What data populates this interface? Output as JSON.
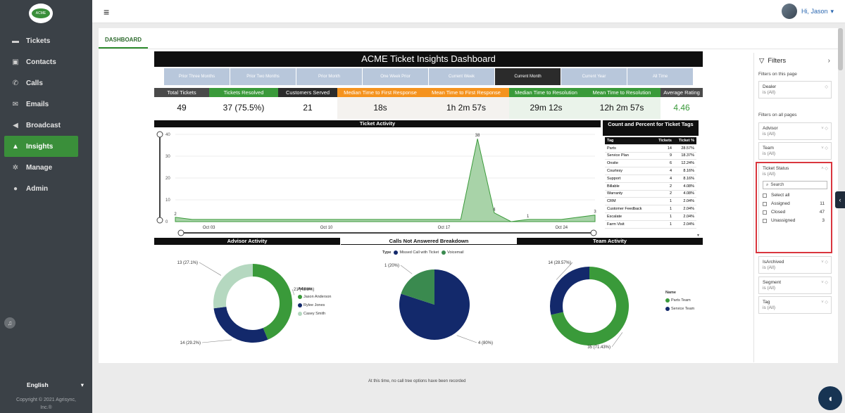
{
  "app": {
    "logo_text": "ACME",
    "nav": [
      {
        "label": "Tickets",
        "icon": "ticket-icon"
      },
      {
        "label": "Contacts",
        "icon": "contacts-icon"
      },
      {
        "label": "Calls",
        "icon": "phone-icon"
      },
      {
        "label": "Emails",
        "icon": "email-icon"
      },
      {
        "label": "Broadcast",
        "icon": "megaphone-icon"
      },
      {
        "label": "Insights",
        "icon": "chart-icon",
        "active": true
      },
      {
        "label": "Manage",
        "icon": "gear-icon"
      },
      {
        "label": "Admin",
        "icon": "user-icon"
      }
    ],
    "language": "English",
    "copyright_line1": "Copyright © 2021 Agrisync,",
    "copyright_line2": "Inc.®",
    "greeting": "Hi, Jason"
  },
  "tab": "DASHBOARD",
  "report": {
    "title": "ACME Ticket Insights Dashboard",
    "periods": [
      "Prior Three Months",
      "Prior Two Months",
      "Prior Month",
      "One Week Prior",
      "Current Week",
      "Current Month",
      "Current Year",
      "All Time"
    ],
    "active_period": "Current Month",
    "kpis": [
      {
        "label": "Total Tickets",
        "value": "49",
        "label_bg": "#4a4a4a",
        "value_bg": "#ffffff",
        "value_color": "#111111"
      },
      {
        "label": "Tickets Resolved",
        "value": "37 (75.5%)",
        "label_bg": "#3a9a3a",
        "value_bg": "#ffffff",
        "value_color": "#111111"
      },
      {
        "label": "Customers Served",
        "value": "21",
        "label_bg": "#2c2c2c",
        "value_bg": "#ffffff",
        "value_color": "#111111"
      },
      {
        "label": "Median Time to First Response",
        "value": "18s",
        "label_bg": "#f5931e",
        "value_bg": "#f4f2ef",
        "value_color": "#111111"
      },
      {
        "label": "Mean Time to First Response",
        "value": "1h 2m 57s",
        "label_bg": "#f5931e",
        "value_bg": "#f4f2ef",
        "value_color": "#111111"
      },
      {
        "label": "Median Time to Resolution",
        "value": "29m 12s",
        "label_bg": "#3a9a3a",
        "value_bg": "#eaf3ea",
        "value_color": "#111111"
      },
      {
        "label": "Mean Time to Resolution",
        "value": "12h 2m 57s",
        "label_bg": "#3a9a3a",
        "value_bg": "#eaf3ea",
        "value_color": "#111111"
      },
      {
        "label": "Average Rating",
        "value": "4.46",
        "label_bg": "#4a4a4a",
        "value_bg": "#ffffff",
        "value_color": "#3a9a3a"
      }
    ],
    "ticket_activity_title": "Ticket Activity",
    "tags_title": "Count and Percent for Ticket Tags",
    "tags_headers": [
      "Tag",
      "Tickets",
      "Ticket %"
    ],
    "tags": [
      [
        "Parts",
        "14",
        "28.57%"
      ],
      [
        "Service Plan",
        "9",
        "18.37%"
      ],
      [
        "Onsite",
        "6",
        "12.24%"
      ],
      [
        "Courtesy",
        "4",
        "8.16%"
      ],
      [
        "Support",
        "4",
        "8.16%"
      ],
      [
        "Billable",
        "2",
        "4.08%"
      ],
      [
        "Warranty",
        "2",
        "4.08%"
      ],
      [
        "CRM",
        "1",
        "2.04%"
      ],
      [
        "Customer Feedback",
        "1",
        "2.04%"
      ],
      [
        "Escalate",
        "1",
        "2.04%"
      ],
      [
        "Farm Visit",
        "1",
        "2.04%"
      ]
    ],
    "advisor_title": "Advisor Activity",
    "advisor_legend_title": "Advisor",
    "calls_title": "Calls Not Answered Breakdown",
    "calls_legend_title": "Type",
    "calls_note": "At this time, no call tree options have been recorded",
    "team_title": "Team Activity",
    "team_legend_title": "Name"
  },
  "chart_data": [
    {
      "type": "area",
      "title": "Ticket Activity",
      "x": [
        "Oct 01",
        "Oct 02",
        "Oct 03",
        "Oct 04",
        "Oct 05",
        "Oct 06",
        "Oct 07",
        "Oct 08",
        "Oct 09",
        "Oct 10",
        "Oct 11",
        "Oct 12",
        "Oct 13",
        "Oct 14",
        "Oct 15",
        "Oct 16",
        "Oct 17",
        "Oct 18",
        "Oct 19",
        "Oct 20",
        "Oct 21",
        "Oct 22",
        "Oct 23",
        "Oct 24",
        "Oct 25",
        "Oct 26"
      ],
      "values": [
        2,
        1,
        1,
        1,
        1,
        1,
        1,
        1,
        1,
        1,
        1,
        1,
        1,
        1,
        1,
        1,
        1,
        1,
        38,
        4,
        0,
        1,
        1,
        1,
        2,
        3
      ],
      "point_labels": {
        "0": "2",
        "18": "38",
        "19": "4",
        "21": "1",
        "25": "3"
      },
      "x_ticks": [
        "Oct 03",
        "Oct 10",
        "Oct 17",
        "Oct 24"
      ],
      "y_ticks": [
        0,
        10,
        20,
        30,
        40
      ],
      "ylim": [
        0,
        40
      ],
      "color": "#3a9a3a"
    },
    {
      "type": "pie",
      "title": "Advisor Activity",
      "donut": true,
      "slices": [
        {
          "name": "Jason Anderson",
          "value": 21,
          "label": "21 (43.8%)",
          "color": "#3a9a3a"
        },
        {
          "name": "Rylee Jones",
          "value": 14,
          "label": "14 (29.2%)",
          "color": "#13296b"
        },
        {
          "name": "Casey Smith",
          "value": 13,
          "label": "13 (27.1%)",
          "color": "#b5d8c0"
        }
      ]
    },
    {
      "type": "pie",
      "title": "Calls Not Answered Breakdown",
      "donut": false,
      "slices": [
        {
          "name": "Missed Call with Ticket",
          "value": 4,
          "label": "4 (80%)",
          "color": "#13296b"
        },
        {
          "name": "Voicemail",
          "value": 1,
          "label": "1 (20%)",
          "color": "#3a8a4f"
        }
      ]
    },
    {
      "type": "pie",
      "title": "Team Activity",
      "donut": true,
      "slices": [
        {
          "name": "Parts Team",
          "value": 35,
          "label": "35 (71.43%)",
          "color": "#3a9a3a"
        },
        {
          "name": "Service Team",
          "value": 14,
          "label": "14 (28.57%)",
          "color": "#13296b"
        }
      ]
    }
  ],
  "filters": {
    "title": "Filters",
    "on_this_page": "Filters on this page",
    "on_all_pages": "Filters on all pages",
    "dealer": {
      "name": "Dealer",
      "value": "is (All)"
    },
    "advisor": {
      "name": "Advisor",
      "value": "is (All)"
    },
    "team": {
      "name": "Team",
      "value": "is (All)"
    },
    "ticket_status": {
      "name": "Ticket Status",
      "value": "is (All)",
      "search_placeholder": "Search",
      "options": [
        {
          "label": "Select all",
          "count": ""
        },
        {
          "label": "Assigned",
          "count": "11"
        },
        {
          "label": "Closed",
          "count": "47"
        },
        {
          "label": "Unassigned",
          "count": "3"
        }
      ]
    },
    "is_archived": {
      "name": "IsArchived",
      "value": "is (All)"
    },
    "segment": {
      "name": "Segment",
      "value": "is (All)"
    },
    "tag": {
      "name": "Tag",
      "value": "is (All)"
    }
  }
}
